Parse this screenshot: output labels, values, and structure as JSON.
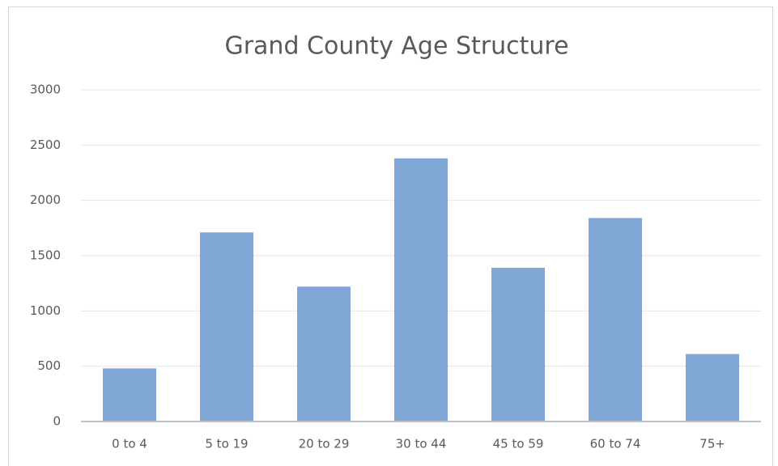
{
  "chart_data": {
    "type": "bar",
    "title": "Grand County Age Structure",
    "categories": [
      "0 to 4",
      "5 to 19",
      "20 to 29",
      "30 to 44",
      "45 to 59",
      "60 to 74",
      "75+"
    ],
    "values": [
      480,
      1710,
      1220,
      2380,
      1390,
      1840,
      610
    ],
    "color": "#7fa6d4",
    "ylim": [
      0,
      3000
    ],
    "yticks": [
      0,
      500,
      1000,
      1500,
      2000,
      2500,
      3000
    ],
    "grid": true
  }
}
